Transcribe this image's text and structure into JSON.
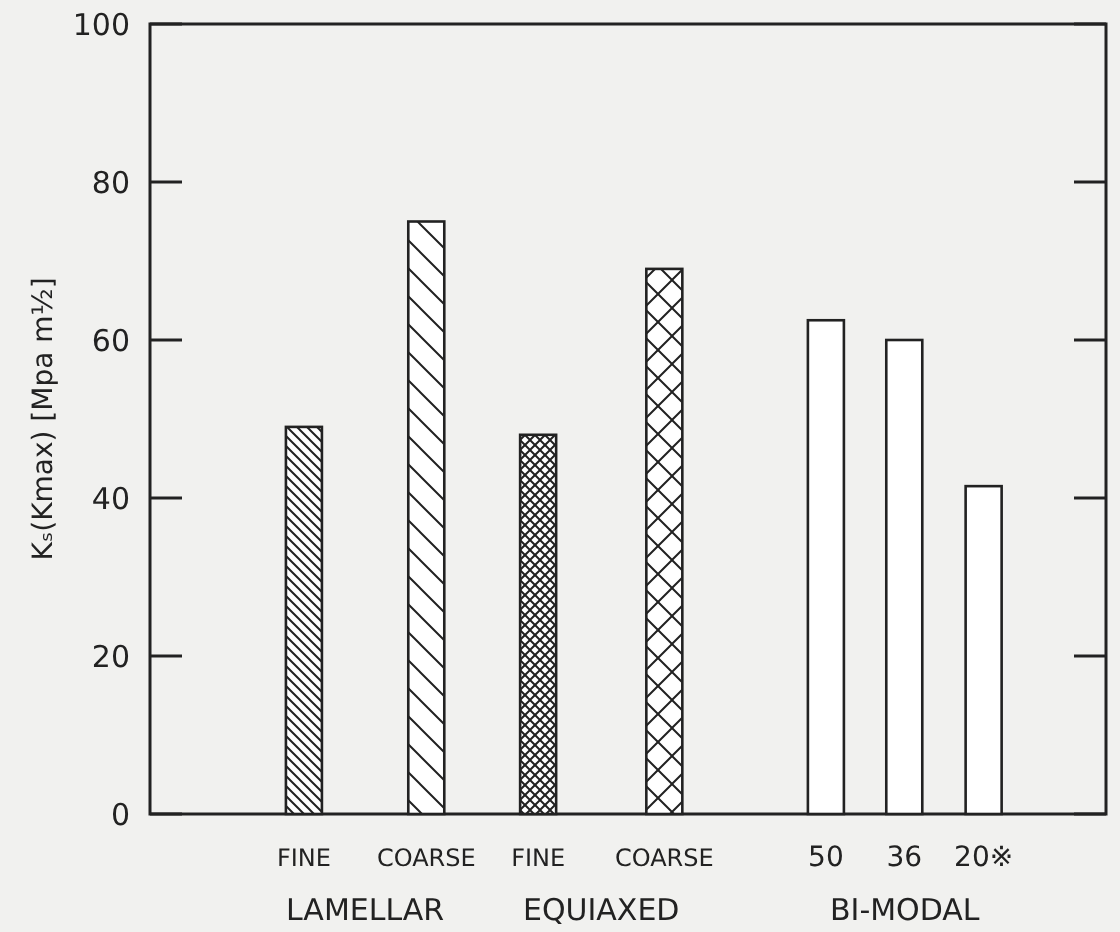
{
  "chart_data": {
    "type": "bar",
    "categories": [
      "FINE",
      "COARSE",
      "FINE",
      "COARSE",
      "50",
      "36",
      "20※"
    ],
    "values": [
      49,
      75,
      48,
      69,
      62.5,
      60,
      41.5
    ],
    "colors": [
      "#222222",
      "#222222",
      "#222222",
      "#222222",
      "#222222",
      "#222222",
      "#222222"
    ],
    "ylabel": "Kₛ(Kmax) [Mpa m½]",
    "ylim": [
      0,
      100
    ],
    "yticks": [
      0,
      20,
      40,
      60,
      80,
      100
    ],
    "annotations": [
      "LAMELLAR",
      "EQUIAXED",
      "BI-MODAL"
    ],
    "grid": false
  }
}
